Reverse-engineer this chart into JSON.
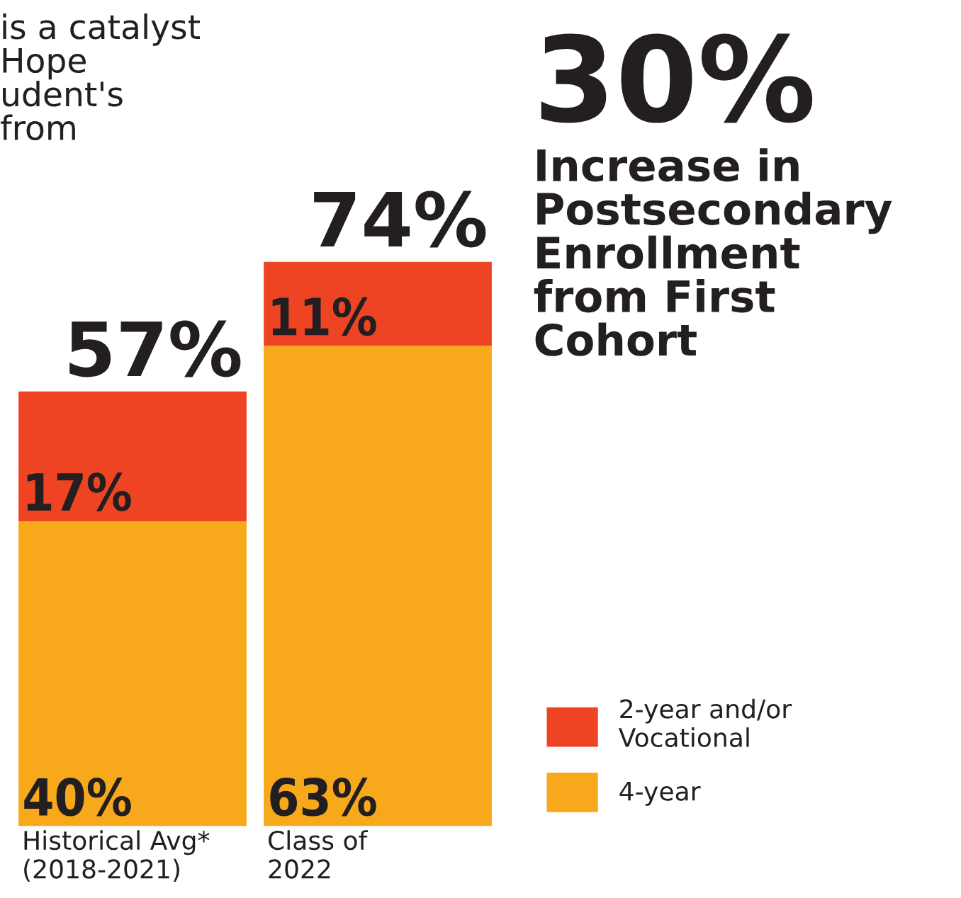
{
  "chart_data": {
    "type": "bar",
    "stacked": true,
    "categories": [
      "Historical Avg*\n(2018-2021)",
      "Class of\n2022"
    ],
    "series": [
      {
        "name": "4-year",
        "color": "#f7a81b",
        "values": [
          40,
          63
        ],
        "value_labels": [
          "40%",
          "63%"
        ]
      },
      {
        "name": "2-year and/or\nVocational",
        "color": "#ee4423",
        "values": [
          17,
          11
        ],
        "value_labels": [
          "17%",
          "11%"
        ]
      }
    ],
    "totals": [
      "57%",
      "74%"
    ],
    "legend": "bottom right",
    "grid": false,
    "annotations": [
      "is a catalyst\nHope\nudent's\nfrom",
      "30%",
      "Increase in\nPostsecondary\nEnrollment\nfrom First\nCohort"
    ]
  }
}
